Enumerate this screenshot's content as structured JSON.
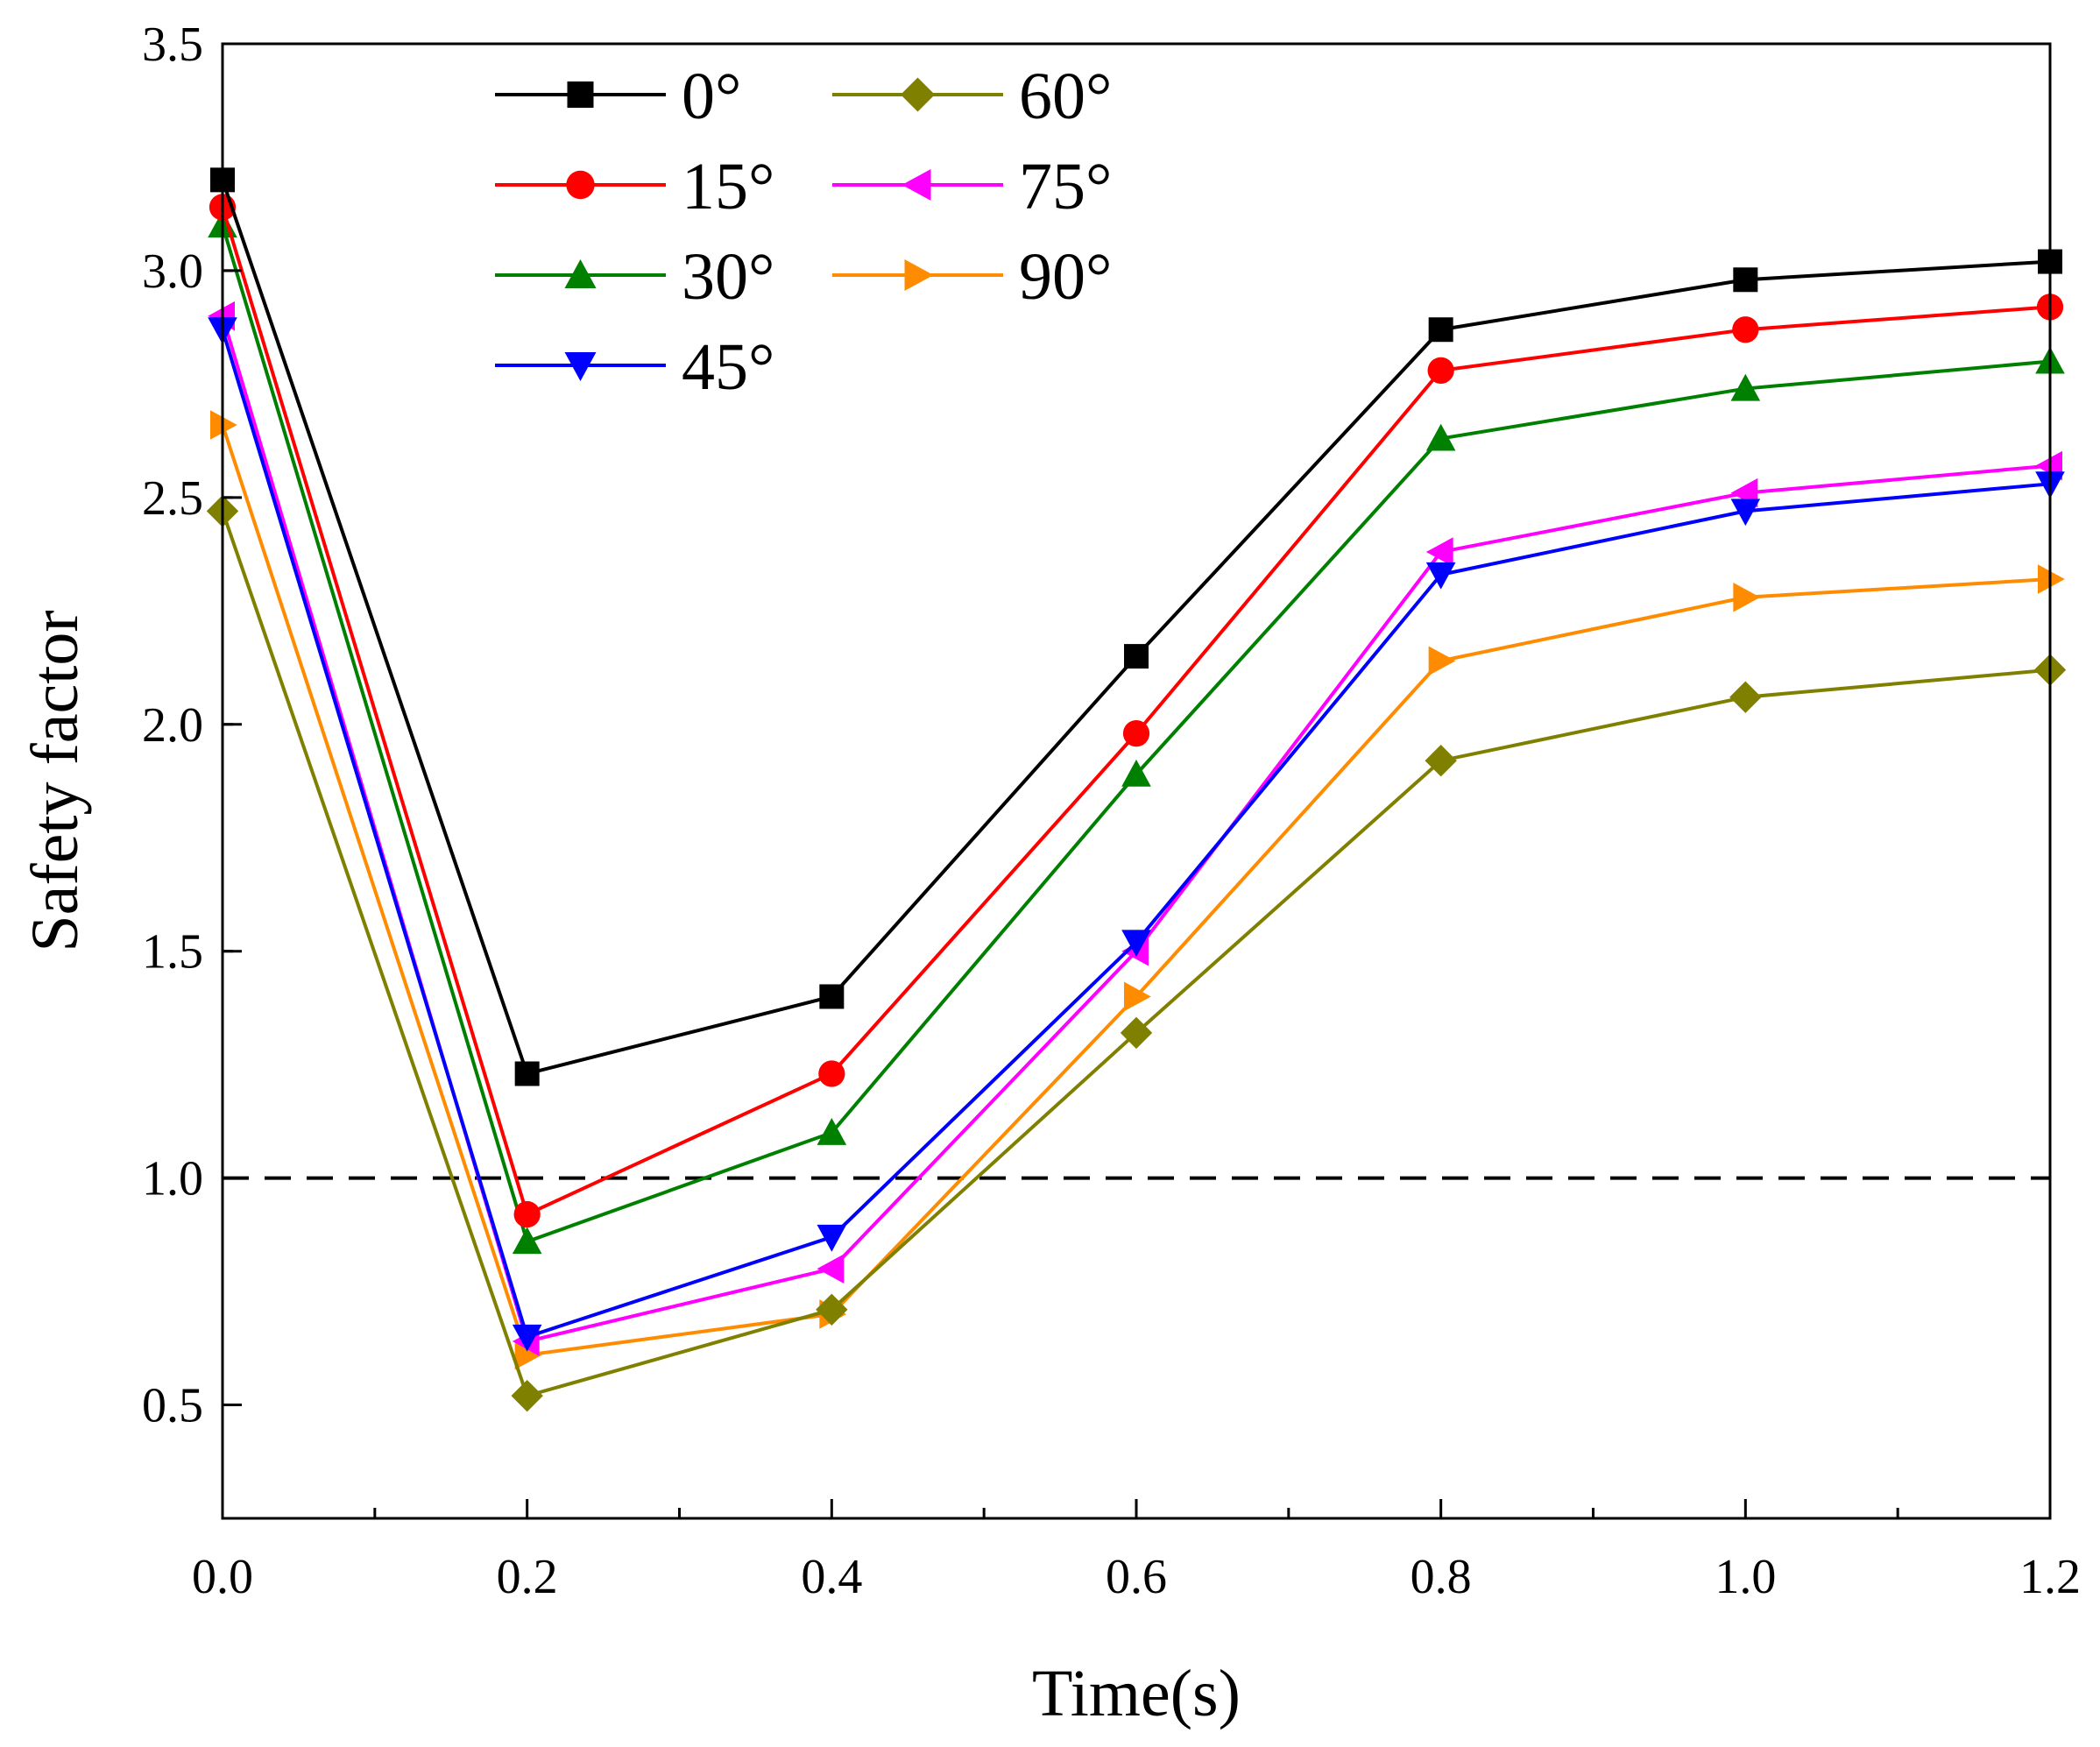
{
  "chart_data": {
    "type": "line",
    "title": "",
    "xlabel": "Time(s)",
    "ylabel": "Safety factor",
    "xlim": [
      0,
      1.2
    ],
    "ylim": [
      0.25,
      3.5
    ],
    "x": [
      0,
      0.2,
      0.4,
      0.6,
      0.8,
      1.0,
      1.2
    ],
    "x_tick_labels": [
      "0.0",
      "0.2",
      "0.4",
      "0.6",
      "0.8",
      "1.0",
      "1.2"
    ],
    "y_tick_values": [
      0.5,
      1.0,
      1.5,
      2.0,
      2.5,
      3.0,
      3.5
    ],
    "y_tick_labels": [
      "0.5",
      "1.0",
      "1.5",
      "2.0",
      "2.5",
      "3.0",
      "3.5"
    ],
    "reference_line": {
      "y": 1.0,
      "style": "dashed",
      "color": "#000000"
    },
    "legend_position": "top-left",
    "series": [
      {
        "name": "0°",
        "color": "#000000",
        "marker": "square",
        "values": [
          3.2,
          1.23,
          1.4,
          2.15,
          2.87,
          2.98,
          3.02
        ]
      },
      {
        "name": "15°",
        "color": "#ff0000",
        "marker": "circle",
        "values": [
          3.14,
          0.92,
          1.23,
          1.98,
          2.78,
          2.87,
          2.92
        ]
      },
      {
        "name": "30°",
        "color": "#008000",
        "marker": "triangle-up",
        "values": [
          3.1,
          0.86,
          1.1,
          1.89,
          2.63,
          2.74,
          2.8
        ]
      },
      {
        "name": "45°",
        "color": "#0000ff",
        "marker": "triangle-down",
        "values": [
          2.87,
          0.65,
          0.87,
          1.52,
          2.33,
          2.47,
          2.53
        ]
      },
      {
        "name": "60°",
        "color": "#808000",
        "marker": "diamond",
        "values": [
          2.47,
          0.52,
          0.71,
          1.32,
          1.92,
          2.06,
          2.12
        ]
      },
      {
        "name": "75°",
        "color": "#ff00ff",
        "marker": "triangle-left",
        "values": [
          2.9,
          0.64,
          0.8,
          1.5,
          2.38,
          2.51,
          2.57
        ]
      },
      {
        "name": "90°",
        "color": "#ff8c00",
        "marker": "triangle-right",
        "values": [
          2.66,
          0.61,
          0.7,
          1.4,
          2.14,
          2.28,
          2.32
        ]
      }
    ]
  }
}
